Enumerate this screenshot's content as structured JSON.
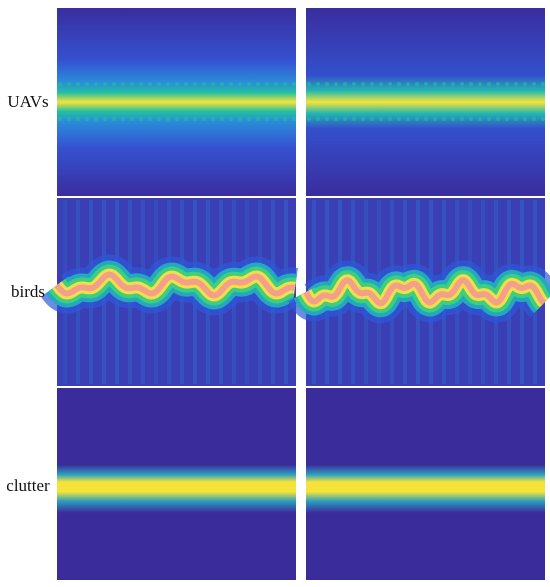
{
  "rows": [
    {
      "label": "UAVs"
    },
    {
      "label": "birds"
    },
    {
      "label": "clutter"
    }
  ]
}
